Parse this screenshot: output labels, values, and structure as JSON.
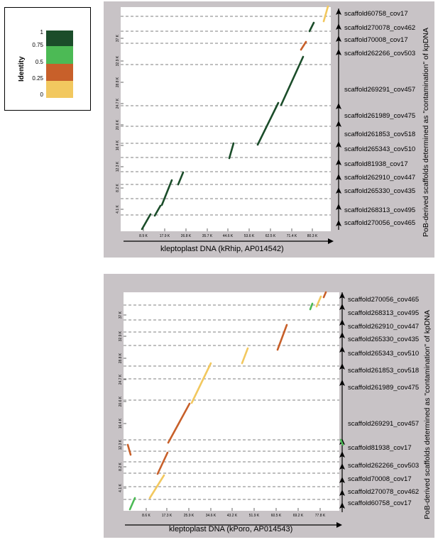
{
  "legend": {
    "title": "Identity",
    "ticks": [
      "1",
      "0.75",
      "0.5",
      "0.25",
      "0"
    ],
    "colors": [
      "#1b4d2a",
      "#4cba55",
      "#c8602a",
      "#f2c85f"
    ]
  },
  "panels": [
    {
      "id": "top",
      "x_title": "kleptoplast DNA (kRhip, AP014542)",
      "y_title": "PoB-derived scaffolds determined as \"contamination\" of kpDNA",
      "x_ticks": [
        "8.9 K",
        "17.9 K",
        "26.8 K",
        "35.7 K",
        "44.6 K",
        "53.6 K",
        "62.5 K",
        "71.4 K",
        "80.3 K"
      ],
      "y_ticks": [
        "4.1 K",
        "8.2 K",
        "12.3 K",
        "16.4 K",
        "20.6 K",
        "24.7 K",
        "28.8 K",
        "32.9 K",
        "37 K"
      ],
      "scaffolds": [
        "scaffold60758_cov17",
        "scaffold270078_cov462",
        "scaffold70008_cov17",
        "scaffold262266_cov503",
        "scaffold269291_cov457",
        "scaffold261989_cov475",
        "scaffold261853_cov518",
        "scaffold265343_cov510",
        "scaffold81938_cov17",
        "scaffold262910_cov447",
        "scaffold265330_cov435",
        "scaffold268313_cov495",
        "scaffold270056_cov465"
      ]
    },
    {
      "id": "bottom",
      "x_title": "kleptoplast DNA (kPoro, AP014543)",
      "y_title": "PoB-derived scaffolds determined as \"contamination\" of kpDNA",
      "x_ticks": [
        "8.6 K",
        "17.3 K",
        "25.9 K",
        "34.6 K",
        "43.2 K",
        "51.9 K",
        "60.5 K",
        "69.2 K",
        "77.8 K"
      ],
      "y_ticks": [
        "4.1 K",
        "8.2 K",
        "12.3 K",
        "16.4 K",
        "20.6 K",
        "24.7 K",
        "28.8 K",
        "32.9 K",
        "37 K"
      ],
      "scaffolds": [
        "scaffold270056_cov465",
        "scaffold268313_cov495",
        "scaffold262910_cov447",
        "scaffold265330_cov435",
        "scaffold265343_cov510",
        "scaffold261853_cov518",
        "scaffold261989_cov475",
        "scaffold269291_cov457",
        "scaffold81938_cov17",
        "scaffold262266_cov503",
        "scaffold70008_cov17",
        "scaffold270078_cov462",
        "scaffold60758_cov17"
      ]
    }
  ]
}
